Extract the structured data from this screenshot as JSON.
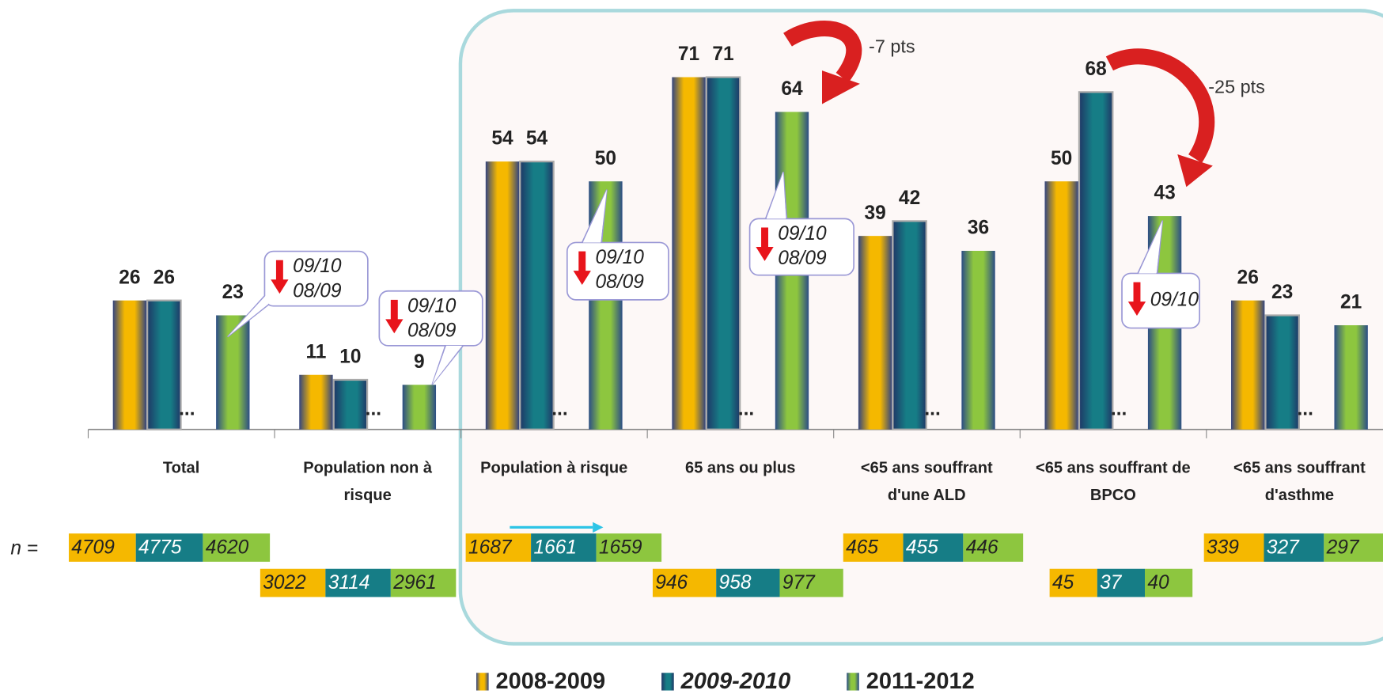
{
  "chart_data": {
    "type": "bar",
    "categories": [
      "Total",
      "Population non à risque",
      "Population à risque",
      "65 ans ou plus",
      "<65 ans souffrant d'une ALD",
      "<65 ans souffrant de BPCO",
      "<65 ans souffrant d'asthme"
    ],
    "series": [
      {
        "name": "2008-2009",
        "color": "#f5b800",
        "values": [
          26,
          11,
          54,
          71,
          39,
          50,
          26
        ]
      },
      {
        "name": "2009-2010",
        "color": "#167d86",
        "values": [
          26,
          10,
          54,
          71,
          42,
          68,
          23
        ]
      },
      {
        "name": "2011-2012",
        "color": "#8dc63f",
        "values": [
          23,
          9,
          50,
          64,
          36,
          43,
          21
        ]
      }
    ],
    "ylim": [
      0,
      75
    ],
    "gap_marker": "...",
    "sample_sizes": {
      "label": "n =",
      "values": [
        [
          4709,
          3022,
          1687,
          946,
          465,
          45,
          339
        ],
        [
          4775,
          3114,
          1661,
          958,
          455,
          37,
          327
        ],
        [
          4620,
          2961,
          1659,
          977,
          446,
          40,
          297
        ]
      ]
    },
    "callouts": [
      {
        "lines": [
          "09/10",
          "08/09"
        ]
      },
      {
        "lines": [
          "09/10",
          "08/09"
        ]
      },
      {
        "lines": [
          "09/10",
          "08/09"
        ]
      },
      {
        "lines": [
          "09/10",
          "08/09"
        ]
      },
      {
        "lines": [
          "09/10"
        ]
      }
    ],
    "differences": [
      "-7 pts",
      "-25 pts"
    ]
  }
}
